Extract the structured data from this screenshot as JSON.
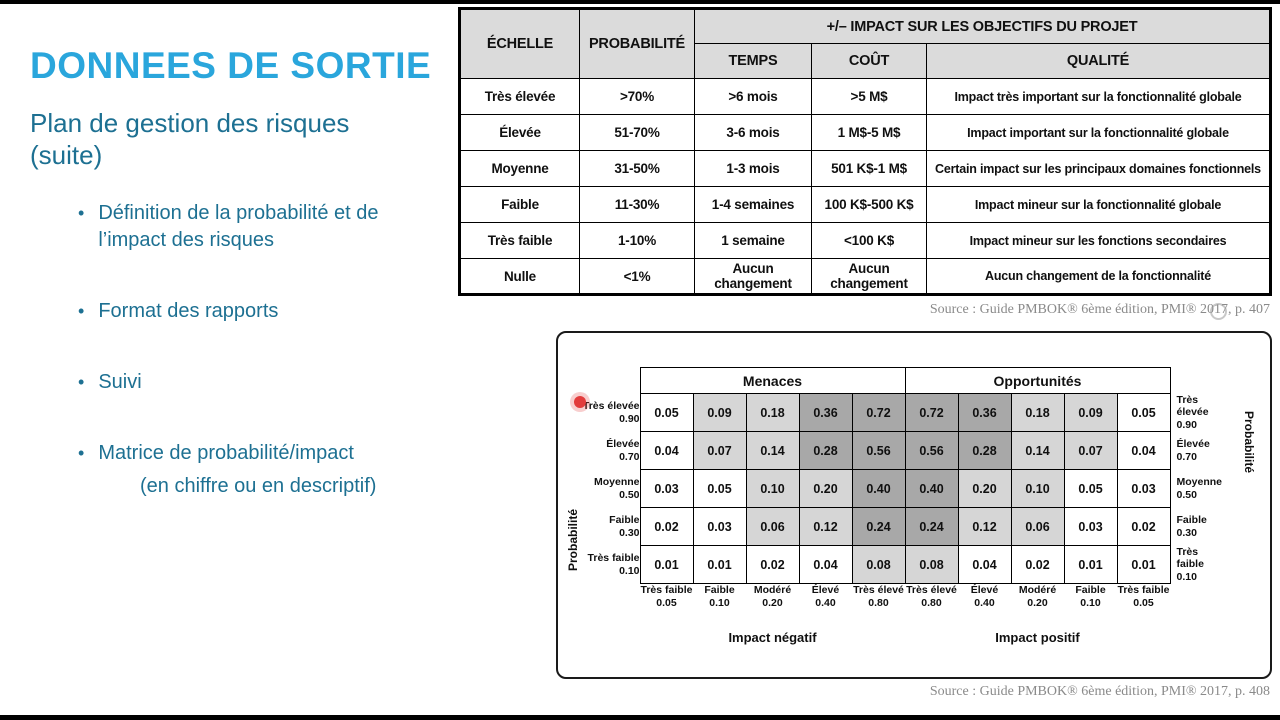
{
  "slide": {
    "title": "DONNEES DE SORTIE",
    "subtitle": "Plan de gestion des risques (suite)",
    "bullets": [
      "Définition de la probabilité et de l’impact des risques",
      "Format des rapports",
      "Suivi",
      "Matrice de probabilité/impact"
    ],
    "sub_bullet": "(en chiffre ou en descriptif)"
  },
  "scale_table": {
    "headers": {
      "echelle": "ÉCHELLE",
      "probabilite": "PROBABILITÉ",
      "impact_group": "+/–  IMPACT SUR LES OBJECTIFS DU PROJET",
      "temps": "TEMPS",
      "cout": "COÛT",
      "qualite": "QUALITÉ"
    },
    "rows": [
      [
        "Très élevée",
        ">70%",
        ">6 mois",
        ">5 M$",
        "Impact très important sur la fonctionnalité globale"
      ],
      [
        "Élevée",
        "51-70%",
        "3-6 mois",
        "1 M$-5 M$",
        "Impact important sur la fonctionnalité globale"
      ],
      [
        "Moyenne",
        "31-50%",
        "1-3 mois",
        "501 K$-1 M$",
        "Certain impact sur les principaux domaines fonctionnels"
      ],
      [
        "Faible",
        "11-30%",
        "1-4 semaines",
        "100 K$-500 K$",
        "Impact mineur sur la fonctionnalité globale"
      ],
      [
        "Très faible",
        "1-10%",
        "1 semaine",
        "<100 K$",
        "Impact mineur sur les fonctions secondaires"
      ],
      [
        "Nulle",
        "<1%",
        "Aucun changement",
        "Aucun changement",
        "Aucun changement de la fonctionnalité"
      ]
    ]
  },
  "matrix": {
    "threats_label": "Menaces",
    "opportunities_label": "Opportunités",
    "prob_axis_label": "Probabilité",
    "neg_impact_label": "Impact négatif",
    "pos_impact_label": "Impact positif",
    "prob_rows": [
      {
        "name": "Très élevée",
        "value": "0.90"
      },
      {
        "name": "Élevée",
        "value": "0.70"
      },
      {
        "name": "Moyenne",
        "value": "0.50"
      },
      {
        "name": "Faible",
        "value": "0.30"
      },
      {
        "name": "Très faible",
        "value": "0.10"
      }
    ],
    "threat_impact_cols": [
      {
        "name": "Très faible",
        "value": "0.05"
      },
      {
        "name": "Faible",
        "value": "0.10"
      },
      {
        "name": "Modéré",
        "value": "0.20"
      },
      {
        "name": "Élevé",
        "value": "0.40"
      },
      {
        "name": "Très élevé",
        "value": "0.80"
      }
    ],
    "opportunity_impact_cols": [
      {
        "name": "Très élevé",
        "value": "0.80"
      },
      {
        "name": "Élevé",
        "value": "0.40"
      },
      {
        "name": "Modéré",
        "value": "0.20"
      },
      {
        "name": "Faible",
        "value": "0.10"
      },
      {
        "name": "Très faible",
        "value": "0.05"
      }
    ],
    "threat_values": [
      [
        "0.05",
        "0.09",
        "0.18",
        "0.36",
        "0.72"
      ],
      [
        "0.04",
        "0.07",
        "0.14",
        "0.28",
        "0.56"
      ],
      [
        "0.03",
        "0.05",
        "0.10",
        "0.20",
        "0.40"
      ],
      [
        "0.02",
        "0.03",
        "0.06",
        "0.12",
        "0.24"
      ],
      [
        "0.01",
        "0.01",
        "0.02",
        "0.04",
        "0.08"
      ]
    ],
    "threat_shades": [
      [
        "w",
        "l",
        "l",
        "d",
        "d"
      ],
      [
        "w",
        "l",
        "l",
        "d",
        "d"
      ],
      [
        "w",
        "w",
        "l",
        "l",
        "d"
      ],
      [
        "w",
        "w",
        "l",
        "l",
        "d"
      ],
      [
        "w",
        "w",
        "w",
        "w",
        "l"
      ]
    ],
    "opportunity_values": [
      [
        "0.72",
        "0.36",
        "0.18",
        "0.09",
        "0.05"
      ],
      [
        "0.56",
        "0.28",
        "0.14",
        "0.07",
        "0.04"
      ],
      [
        "0.40",
        "0.20",
        "0.10",
        "0.05",
        "0.03"
      ],
      [
        "0.24",
        "0.12",
        "0.06",
        "0.03",
        "0.02"
      ],
      [
        "0.08",
        "0.04",
        "0.02",
        "0.01",
        "0.01"
      ]
    ],
    "opportunity_shades": [
      [
        "d",
        "d",
        "l",
        "l",
        "w"
      ],
      [
        "d",
        "d",
        "l",
        "l",
        "w"
      ],
      [
        "d",
        "l",
        "l",
        "w",
        "w"
      ],
      [
        "d",
        "l",
        "l",
        "w",
        "w"
      ],
      [
        "l",
        "w",
        "w",
        "w",
        "w"
      ]
    ],
    "shade_colors": {
      "w": "#ffffff",
      "l": "#d6d6d6",
      "d": "#a8a8a8"
    }
  },
  "sources": {
    "top": "Source :  Guide PMBOK® 6ème édition, PMI® 2017, p. 407",
    "bottom": "Source :  Guide PMBOK® 6ème édition, PMI® 2017, p. 408"
  }
}
